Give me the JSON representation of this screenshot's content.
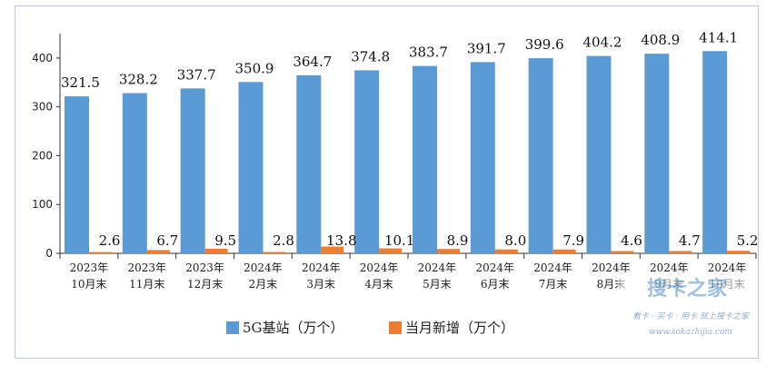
{
  "chart_data": {
    "type": "bar",
    "categories": [
      [
        "2023年",
        "10月末"
      ],
      [
        "2023年",
        "11月末"
      ],
      [
        "2023年",
        "12月末"
      ],
      [
        "2024年",
        "2月末"
      ],
      [
        "2024年",
        "3月末"
      ],
      [
        "2024年",
        "4月末"
      ],
      [
        "2024年",
        "5月末"
      ],
      [
        "2024年",
        "6月末"
      ],
      [
        "2024年",
        "7月末"
      ],
      [
        "2024年",
        "8月末"
      ],
      [
        "2024年",
        "9月末"
      ],
      [
        "2024年",
        "10月末"
      ]
    ],
    "series": [
      {
        "name": "5G基站（万个）",
        "color": "#5b9bd5",
        "values": [
          321.5,
          328.2,
          337.7,
          350.9,
          364.7,
          374.8,
          383.7,
          391.7,
          399.6,
          404.2,
          408.9,
          414.1
        ],
        "labels": [
          "321.5",
          "328.2",
          "337.7",
          "350.9",
          "364.7",
          "374.8",
          "383.7",
          "391.7",
          "399.6",
          "404.2",
          "408.9",
          "414.1"
        ]
      },
      {
        "name": "当月新增（万个）",
        "color": "#ed7d31",
        "values": [
          2.6,
          6.7,
          9.5,
          2.8,
          13.8,
          10.1,
          8.9,
          8.0,
          7.9,
          4.6,
          4.7,
          5.2
        ],
        "labels": [
          "2.6",
          "6.7",
          "9.5",
          "2.8",
          "13.8",
          "10.1",
          "8.9",
          "8.0",
          "7.9",
          "4.6",
          "4.7",
          "5.2"
        ]
      }
    ],
    "yticks": [
      "0",
      "100",
      "200",
      "300",
      "400"
    ],
    "ylim": [
      0,
      450
    ],
    "grid": false,
    "legend": "bottom"
  },
  "watermark": {
    "brand": "搜卡之家",
    "slogan": "看卡 · 买卡 · 用卡 就上搜卡之家",
    "url": "www.sokazhijia.com"
  }
}
